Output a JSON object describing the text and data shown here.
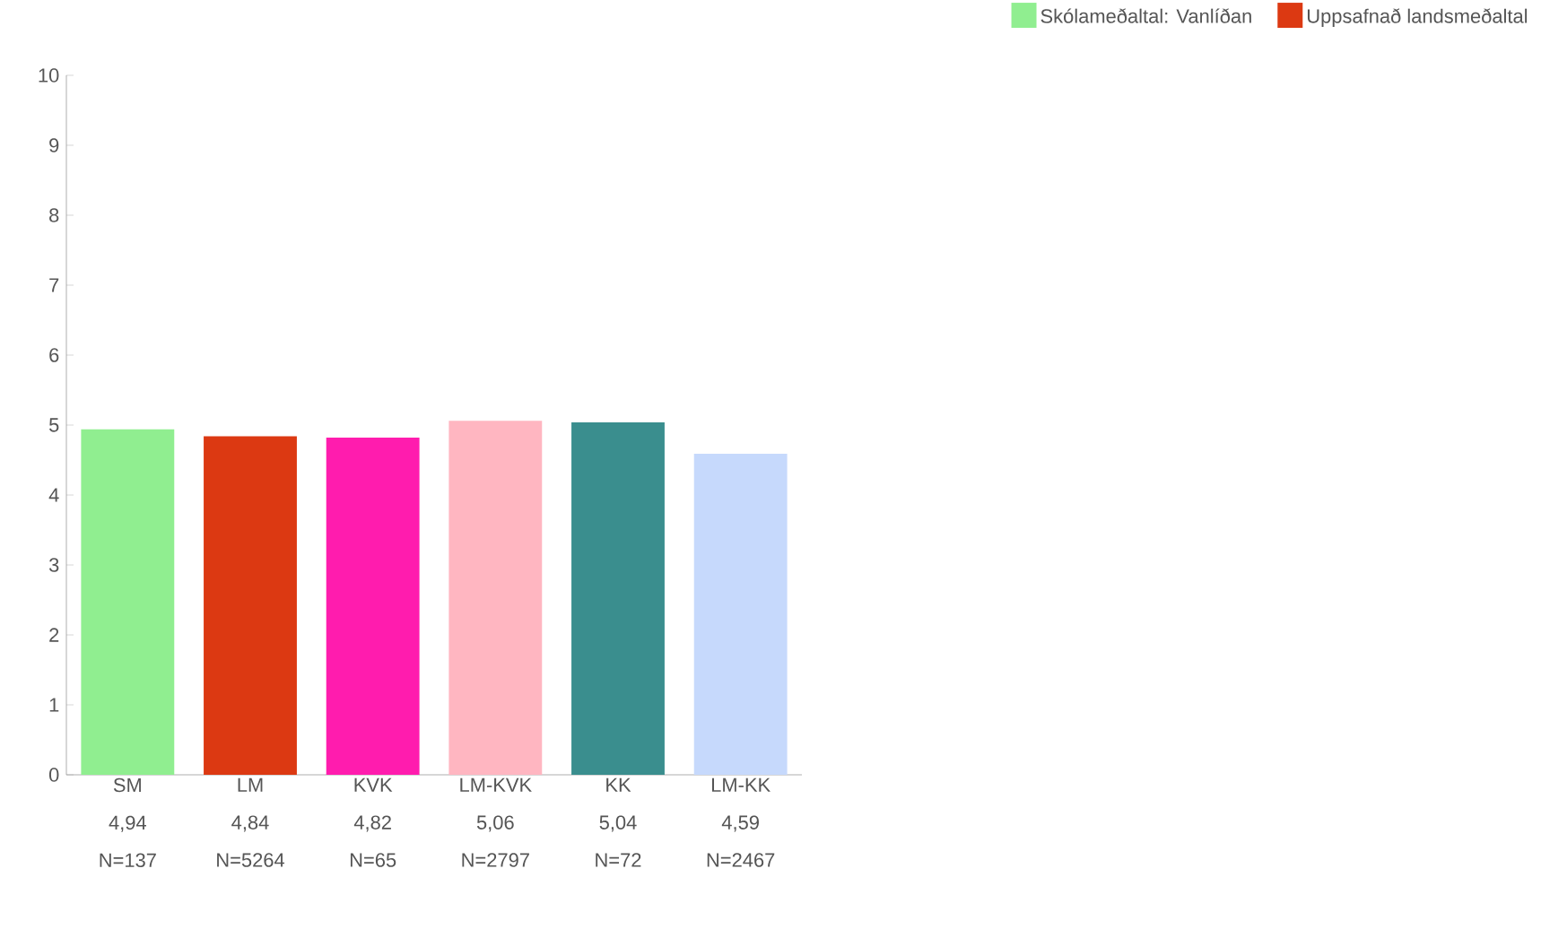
{
  "chart_data": {
    "type": "bar",
    "categories": [
      "SM",
      "LM",
      "KVK",
      "LM-KVK",
      "KK",
      "LM-KK"
    ],
    "value_labels": [
      "4,94",
      "4,84",
      "4,82",
      "5,06",
      "5,04",
      "4,59"
    ],
    "annotations": [
      "N=137",
      "N=5264",
      "N=65",
      "N=2797",
      "N=72",
      "N=2467"
    ],
    "series": [
      {
        "name": "Skólameðaltal: Vanlíðan",
        "color": "#90ee90",
        "values": [
          4.94,
          null,
          null,
          null,
          null,
          null
        ]
      },
      {
        "name": "Uppsafnað landsmeðaltal",
        "color": "#dc3912",
        "values": [
          null,
          4.84,
          null,
          null,
          null,
          null
        ]
      },
      {
        "colors": [
          null,
          null,
          "#ff1cae",
          "#ffb6c1",
          "#3a8e8e",
          "#c6d9fc"
        ],
        "values": [
          null,
          null,
          4.82,
          5.06,
          5.04,
          4.59
        ]
      }
    ],
    "ylim": [
      0,
      10
    ],
    "yticks": [
      0,
      1,
      2,
      3,
      4,
      5,
      6,
      7,
      8,
      9,
      10
    ],
    "legend": "top right"
  }
}
